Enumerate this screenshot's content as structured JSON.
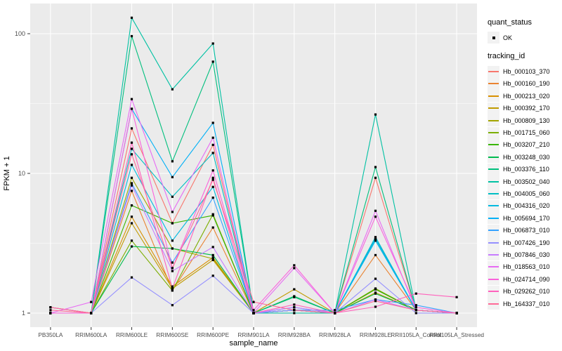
{
  "legend": {
    "quant_status_title": "quant_status",
    "quant_status_items": [
      {
        "label": "OK"
      }
    ],
    "tracking_title": "tracking_id"
  },
  "style": {
    "panel_bg": "#EBEBEB",
    "grid_color": "#FFFFFF",
    "axis_text_color": "#4D4D4D",
    "axis_title_color": "#000000",
    "point_color": "#000000",
    "legend_key_bg": "#F2F2F2"
  },
  "chart_data": {
    "type": "line",
    "title": "",
    "xlabel": "sample_name",
    "ylabel": "FPKM + 1",
    "y_scale": "log10",
    "y_ticks": [
      1,
      10,
      100
    ],
    "y_minor_ticks": [
      3.1623,
      31.623
    ],
    "ylim": [
      0.79,
      164
    ],
    "grid": true,
    "legend_position": "right",
    "point_shape": "filled-square",
    "categories": [
      "PB350LA",
      "RRIM600LA",
      "RRIM600LE",
      "RRIM600SE",
      "RRIM600PE",
      "RRIM901LA",
      "RRIM928BA",
      "RRIM928LA",
      "RRIM928LE",
      "RRII105LA_Control",
      "RRII105LA_Stressed"
    ],
    "series": [
      {
        "name": "Hb_000103_370",
        "color": "#F8766D",
        "quant_status": "OK",
        "values": [
          1,
          1,
          21,
          4.4,
          16,
          1,
          1.05,
          1,
          9.3,
          1.05,
          1
        ]
      },
      {
        "name": "Hb_000160_190",
        "color": "#EA8331",
        "quant_status": "OK",
        "values": [
          1,
          1,
          7.5,
          1.45,
          4.1,
          1,
          1.05,
          1,
          2.6,
          1.05,
          1
        ]
      },
      {
        "name": "Hb_000213_020",
        "color": "#D89000",
        "quant_status": "OK",
        "values": [
          1.1,
          1,
          4.9,
          1.55,
          2.5,
          1,
          1.05,
          1,
          1.48,
          1.05,
          1
        ]
      },
      {
        "name": "Hb_000392_170",
        "color": "#C09B00",
        "quant_status": "OK",
        "values": [
          1,
          1,
          4.4,
          1.5,
          2.4,
          1,
          1.48,
          1,
          1.4,
          1.05,
          1
        ]
      },
      {
        "name": "Hb_000809_130",
        "color": "#A3A500",
        "quant_status": "OK",
        "values": [
          1.1,
          1,
          9.3,
          2.9,
          2.45,
          1,
          1.05,
          1,
          3.4,
          1.05,
          1
        ]
      },
      {
        "name": "Hb_001715_060",
        "color": "#7CAE00",
        "quant_status": "OK",
        "values": [
          1,
          1,
          3.3,
          1.45,
          5.1,
          1,
          1.05,
          1,
          1.5,
          1.05,
          1
        ]
      },
      {
        "name": "Hb_003207_210",
        "color": "#39B600",
        "quant_status": "OK",
        "values": [
          1,
          1,
          5.9,
          4.4,
          5.0,
          1,
          1.05,
          1,
          1.48,
          1.05,
          1
        ]
      },
      {
        "name": "Hb_003248_030",
        "color": "#00BB4E",
        "quant_status": "OK",
        "values": [
          1,
          1,
          3.0,
          2.9,
          2.6,
          1,
          1.32,
          1,
          1.38,
          1.05,
          1
        ]
      },
      {
        "name": "Hb_003376_110",
        "color": "#00BF7D",
        "quant_status": "OK",
        "values": [
          1,
          1,
          96,
          12.2,
          63,
          1,
          1.3,
          1,
          11.1,
          1.05,
          1
        ]
      },
      {
        "name": "Hb_003502_040",
        "color": "#00C1A3",
        "quant_status": "OK",
        "values": [
          1,
          1,
          130,
          40,
          85,
          1,
          1,
          1,
          26.4,
          1.05,
          1
        ]
      },
      {
        "name": "Hb_004005_060",
        "color": "#00BFC4",
        "quant_status": "OK",
        "values": [
          1,
          1,
          15,
          6.8,
          14,
          1,
          1.05,
          1,
          3.5,
          1.05,
          1
        ]
      },
      {
        "name": "Hb_004316_020",
        "color": "#00BAE0",
        "quant_status": "OK",
        "values": [
          1,
          1,
          11.5,
          3.3,
          8.0,
          1,
          1.05,
          1,
          3.3,
          1.05,
          1
        ]
      },
      {
        "name": "Hb_005694_170",
        "color": "#00B0F6",
        "quant_status": "OK",
        "values": [
          1,
          1,
          29,
          9.4,
          23,
          1,
          1.1,
          1,
          3.4,
          1.05,
          1
        ]
      },
      {
        "name": "Hb_006873_010",
        "color": "#35A2FF",
        "quant_status": "OK",
        "values": [
          1,
          1,
          8.5,
          2.3,
          6.7,
          1,
          1.05,
          1.05,
          1.25,
          1.14,
          1
        ]
      },
      {
        "name": "Hb_007426_190",
        "color": "#9590FF",
        "quant_status": "OK",
        "values": [
          1,
          1,
          1.8,
          1.14,
          1.85,
          1,
          1.05,
          1,
          1.76,
          1,
          1
        ]
      },
      {
        "name": "Hb_007846_030",
        "color": "#C77CFF",
        "quant_status": "OK",
        "values": [
          1,
          1,
          8.2,
          2.0,
          2.97,
          1,
          1.1,
          1,
          1.25,
          1.05,
          1
        ]
      },
      {
        "name": "Hb_018563_010",
        "color": "#E76BF3",
        "quant_status": "OK",
        "values": [
          1,
          1.2,
          34,
          5.3,
          18,
          1,
          2.1,
          1,
          5.4,
          1.05,
          1
        ]
      },
      {
        "name": "Hb_024714_090",
        "color": "#FA62DB",
        "quant_status": "OK",
        "values": [
          1,
          1,
          29,
          2.1,
          10.5,
          1.05,
          2.2,
          1,
          4.9,
          1.1,
          1
        ]
      },
      {
        "name": "Hb_029262_010",
        "color": "#FF62BC",
        "quant_status": "OK",
        "values": [
          1.1,
          1,
          16.6,
          1.5,
          9.3,
          1,
          1.15,
          1,
          1.11,
          1.38,
          1.3
        ]
      },
      {
        "name": "Hb_164337_010",
        "color": "#FF6A98",
        "quant_status": "OK",
        "values": [
          1.05,
          1,
          13.7,
          2.1,
          9.0,
          1.2,
          1.05,
          1,
          1.22,
          1.05,
          1
        ]
      }
    ]
  }
}
